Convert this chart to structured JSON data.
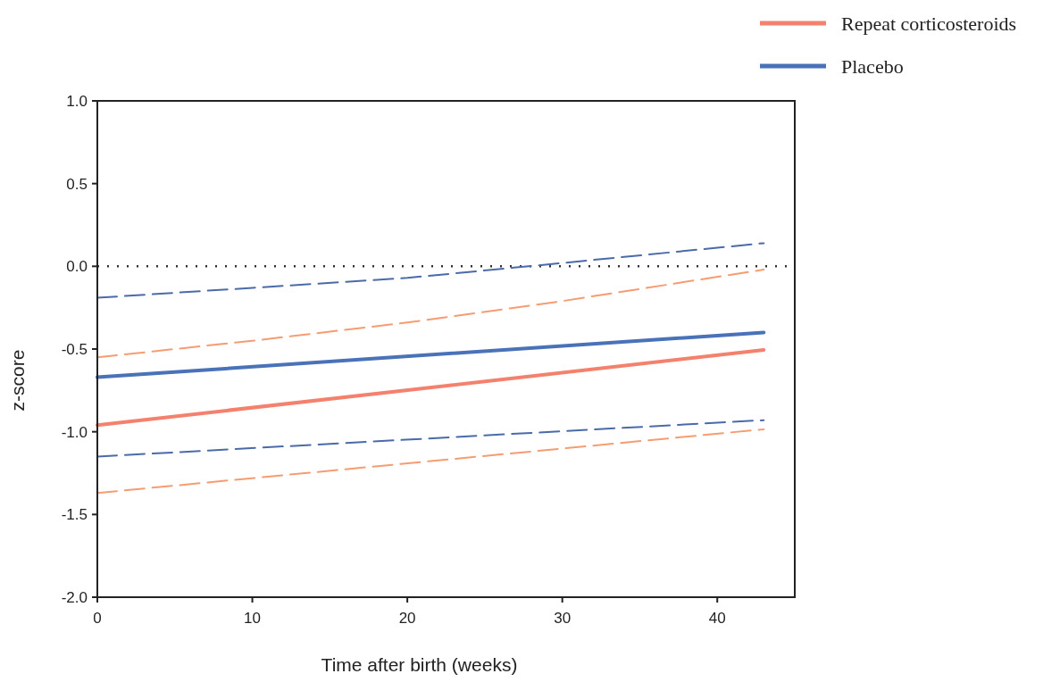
{
  "chart_data": {
    "type": "line",
    "xlabel": "Time after birth (weeks)",
    "ylabel": "z-score",
    "xlim": [
      0,
      45
    ],
    "ylim": [
      -2,
      1
    ],
    "xticks": [
      0,
      10,
      20,
      30,
      40
    ],
    "yticks": [
      {
        "value": -2,
        "label": "-2.0"
      },
      {
        "value": -1.5,
        "label": "-1.5"
      },
      {
        "value": -1,
        "label": "-1.0"
      },
      {
        "value": -0.5,
        "label": "-0.5"
      },
      {
        "value": 0,
        "label": "0.0"
      },
      {
        "value": 0.5,
        "label": "0.5"
      },
      {
        "value": 1,
        "label": "1.0"
      }
    ],
    "grid": false,
    "legend": "top right",
    "marker": "none",
    "ref_lines": [
      {
        "axis": "y",
        "value": 0,
        "color": "#333333",
        "line_style": "dotted"
      }
    ],
    "series": [
      {
        "name": "Repeat corticosteroids",
        "color": "#f4806e",
        "line_style": "solid",
        "x": [
          0,
          43
        ],
        "values": [
          -0.96,
          -0.505
        ]
      },
      {
        "name": "Placebo",
        "color": "#4a72b8",
        "line_style": "solid",
        "x": [
          0,
          43
        ],
        "values": [
          -0.67,
          -0.4
        ]
      },
      {
        "color": "#4a6aa8",
        "line_style": "dashed",
        "x": [
          0,
          10,
          20,
          30,
          43
        ],
        "values": [
          -0.19,
          -0.13,
          -0.07,
          0.02,
          0.14
        ]
      },
      {
        "color": "#f59c72",
        "line_style": "dashed",
        "x": [
          0,
          10,
          20,
          30,
          43
        ],
        "values": [
          -0.55,
          -0.45,
          -0.34,
          -0.21,
          -0.02
        ]
      },
      {
        "color": "#4a6aa8",
        "line_style": "dashed",
        "x": [
          0,
          43
        ],
        "values": [
          -1.15,
          -0.93
        ]
      },
      {
        "color": "#f59c72",
        "line_style": "dashed",
        "x": [
          0,
          43
        ],
        "values": [
          -1.37,
          -0.985
        ]
      }
    ]
  }
}
